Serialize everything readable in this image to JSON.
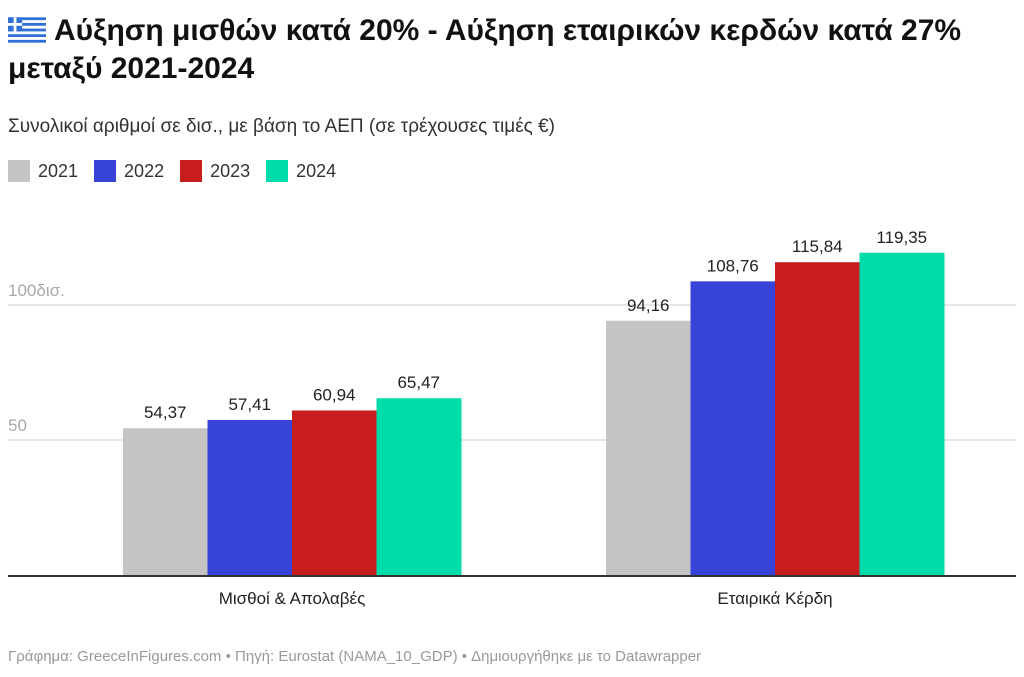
{
  "header": {
    "flag_icon": "greek-flag-icon",
    "title": "Αύξηση μισθών κατά 20% - Αύξηση εταιρικών κερδών κατά 27% μεταξύ 2021-2024",
    "subtitle": "Συνολικοί αριθμοί σε δισ., με βάση το ΑΕΠ (σε τρέχουσες τιμές €)"
  },
  "legend": [
    {
      "label": "2021",
      "color": "#c4c4c4"
    },
    {
      "label": "2022",
      "color": "#3844d9"
    },
    {
      "label": "2023",
      "color": "#c81d1d"
    },
    {
      "label": "2024",
      "color": "#00dbaa"
    }
  ],
  "chart_data": {
    "type": "bar",
    "title": "Αύξηση μισθών κατά 20% - Αύξηση εταιρικών κερδών κατά 27% μεταξύ 2021-2024",
    "subtitle": "Συνολικοί αριθμοί σε δισ., με βάση το ΑΕΠ (σε τρέχουσες τιμές €)",
    "categories": [
      "Μισθοί & Απολαβές",
      "Εταιρικά Κέρδη"
    ],
    "series": [
      {
        "name": "2021",
        "color": "#c4c4c4",
        "values": [
          54.37,
          94.16
        ],
        "labels": [
          "54,37",
          "94,16"
        ]
      },
      {
        "name": "2022",
        "color": "#3844d9",
        "values": [
          57.41,
          108.76
        ],
        "labels": [
          "57,41",
          "108,76"
        ]
      },
      {
        "name": "2023",
        "color": "#c81d1d",
        "values": [
          60.94,
          115.84
        ],
        "labels": [
          "60,94",
          "115,84"
        ]
      },
      {
        "name": "2024",
        "color": "#00dbaa",
        "values": [
          65.47,
          119.35
        ],
        "labels": [
          "65,47",
          "119,35"
        ]
      }
    ],
    "yticks": [
      {
        "value": 50,
        "label": "50"
      },
      {
        "value": 100,
        "label": "100δισ."
      }
    ],
    "ylim": [
      0,
      135
    ],
    "grid": true,
    "legend_position": "top-left",
    "xlabel": "",
    "ylabel": ""
  },
  "footer": {
    "credit": "Γράφημα: GreeceInFigures.com • Πηγή: Eurostat (NAMA_10_GDP) • Δημιουργήθηκε με το Datawrapper"
  }
}
